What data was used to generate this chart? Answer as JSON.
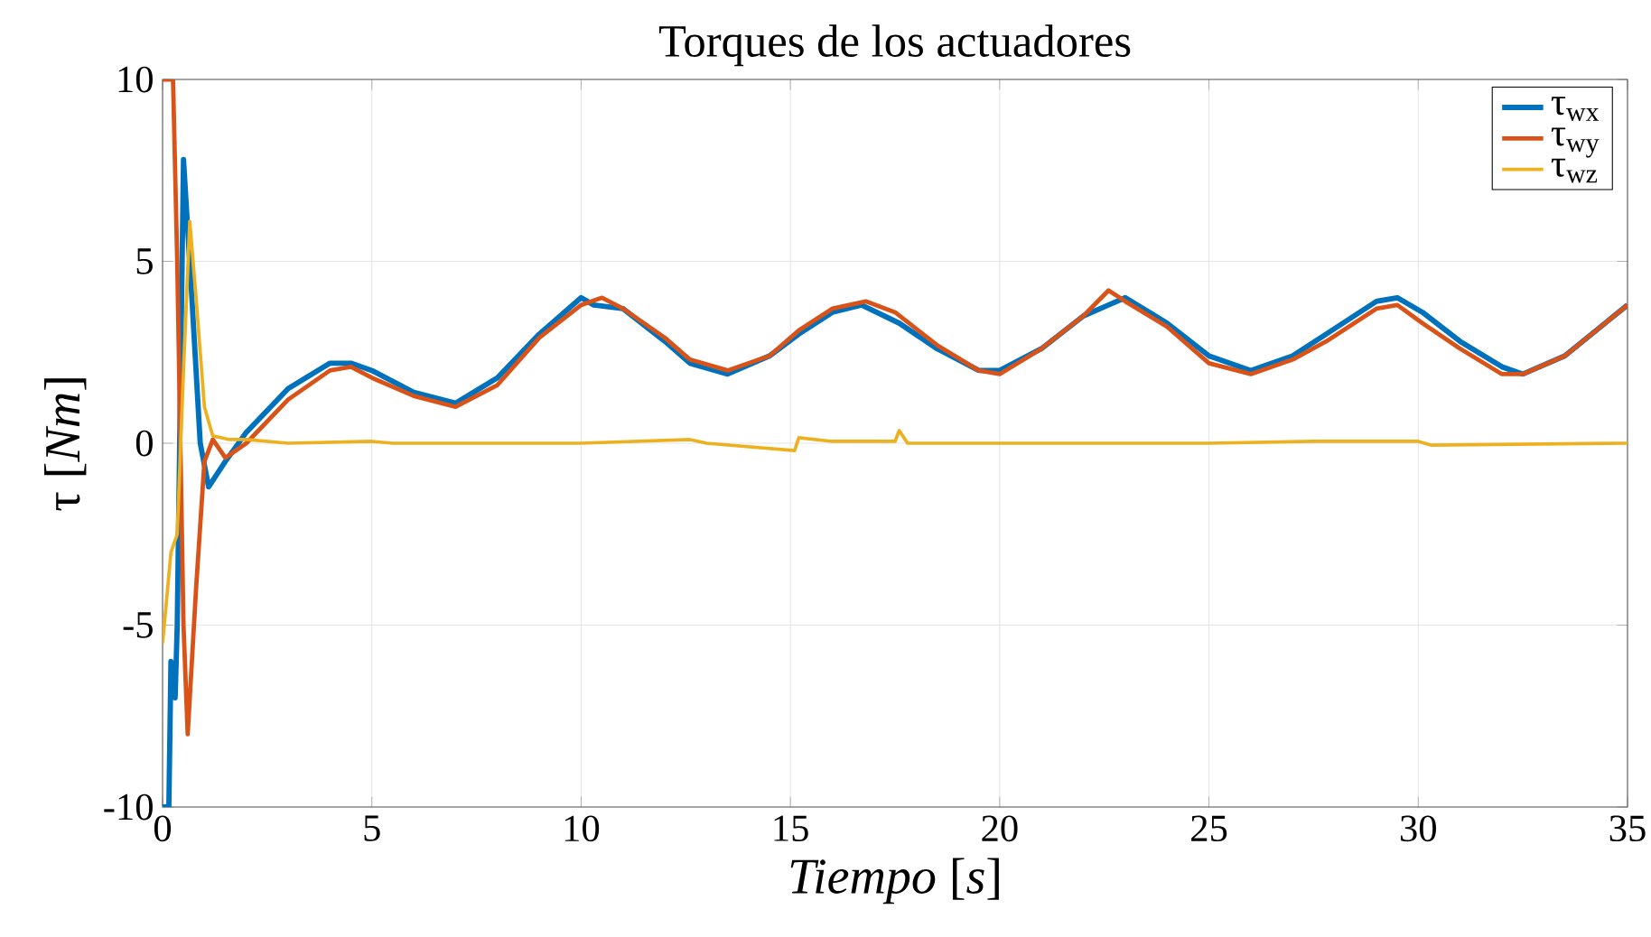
{
  "chart_data": {
    "type": "line",
    "title": "Torques de los actuadores",
    "xlabel": "*Tiempo* [*s*]",
    "ylabel": "τ [*Nm*]",
    "xlim": [
      0,
      35
    ],
    "ylim": [
      -10,
      10
    ],
    "xticks": [
      0,
      5,
      10,
      15,
      20,
      25,
      30,
      35
    ],
    "yticks": [
      -10,
      -5,
      0,
      5,
      10
    ],
    "grid": true,
    "legend": "top right",
    "series": [
      {
        "name": "τ$_{wx}$",
        "color": "#0072bd",
        "x": [
          0,
          0.15,
          0.2,
          0.3,
          0.35,
          0.5,
          0.7,
          0.9,
          1.1,
          1.5,
          2,
          3,
          4,
          4.5,
          5,
          6,
          7,
          8,
          9,
          10,
          10.3,
          11,
          12,
          12.6,
          13.5,
          14.5,
          15.2,
          16,
          16.7,
          17.6,
          18.5,
          19.5,
          20,
          21,
          22,
          22.6,
          23,
          24,
          25,
          26,
          27,
          27.8,
          29,
          29.5,
          30.1,
          31,
          32,
          32.5,
          33.5,
          35
        ],
        "values": [
          -10,
          -10,
          -6,
          -7,
          -5,
          7.8,
          4,
          0,
          -1.2,
          -0.5,
          0.3,
          1.5,
          2.2,
          2.2,
          2.0,
          1.4,
          1.1,
          1.8,
          3.0,
          4.0,
          3.8,
          3.7,
          2.8,
          2.2,
          1.9,
          2.4,
          3.0,
          3.6,
          3.8,
          3.3,
          2.6,
          2.0,
          2.0,
          2.6,
          3.5,
          3.8,
          4.0,
          3.3,
          2.4,
          2.0,
          2.4,
          3.0,
          3.9,
          4.0,
          3.6,
          2.8,
          2.1,
          1.9,
          2.4,
          3.8
        ]
      },
      {
        "name": "τ$_{wy}$",
        "color": "#d95319",
        "x": [
          0,
          0.25,
          0.35,
          0.5,
          0.6,
          0.8,
          1.0,
          1.2,
          1.5,
          2,
          3,
          4,
          4.5,
          5,
          6,
          7,
          8,
          9,
          10,
          10.5,
          11,
          12,
          12.6,
          13.5,
          14.5,
          15.2,
          16,
          16.8,
          17.5,
          18.5,
          19.5,
          20,
          21,
          22,
          22.6,
          23,
          24,
          25,
          26,
          27,
          27.8,
          29,
          29.5,
          30.1,
          31,
          32,
          32.5,
          33.5,
          35
        ],
        "values": [
          10,
          10,
          5,
          -5,
          -8,
          -4,
          -0.5,
          0.1,
          -0.4,
          0,
          1.2,
          2.0,
          2.1,
          1.8,
          1.3,
          1.0,
          1.6,
          2.9,
          3.8,
          4.0,
          3.7,
          2.9,
          2.3,
          2.0,
          2.4,
          3.1,
          3.7,
          3.9,
          3.6,
          2.7,
          2.0,
          1.9,
          2.6,
          3.5,
          4.2,
          3.9,
          3.2,
          2.2,
          1.9,
          2.3,
          2.8,
          3.7,
          3.8,
          3.3,
          2.6,
          1.9,
          1.9,
          2.4,
          3.8
        ]
      },
      {
        "name": "τ$_{wz}$",
        "color": "#edb120",
        "x": [
          0,
          0.2,
          0.35,
          0.5,
          0.65,
          0.8,
          1,
          1.2,
          1.6,
          2,
          3,
          5,
          5.5,
          10,
          12.6,
          13,
          15.1,
          15.2,
          16,
          17.5,
          17.6,
          17.8,
          20,
          25,
          27.5,
          28,
          30,
          30.3,
          35
        ],
        "values": [
          -5.5,
          -3,
          -2.5,
          2,
          6.1,
          4,
          1,
          0.2,
          0.1,
          0.1,
          0,
          0.05,
          0,
          0,
          0.1,
          0,
          -0.2,
          0.15,
          0.05,
          0.05,
          0.35,
          0,
          0,
          0,
          0.05,
          0.05,
          0.05,
          -0.05,
          0
        ]
      }
    ]
  }
}
